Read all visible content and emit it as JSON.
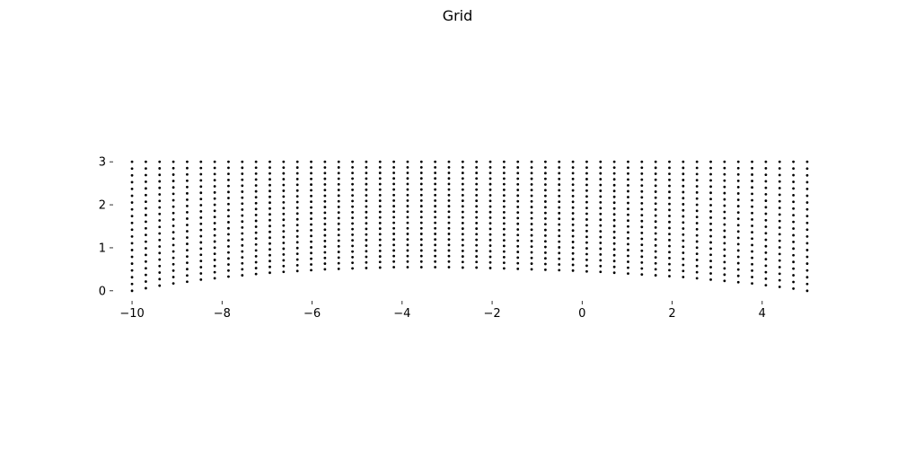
{
  "chart_data": {
    "type": "scatter",
    "title": "Grid",
    "xlabel": "",
    "ylabel": "",
    "xlim": [
      -10.4,
      5.4
    ],
    "ylim": [
      -0.15,
      3.15
    ],
    "x_ticks": [
      -10,
      -8,
      -6,
      -4,
      -2,
      0,
      2,
      4
    ],
    "x_tick_labels": [
      "−10",
      "−8",
      "−6",
      "−4",
      "−2",
      "0",
      "2",
      "4"
    ],
    "y_ticks": [
      0,
      1,
      2,
      3
    ],
    "y_tick_labels": [
      "0",
      "1",
      "2",
      "3"
    ],
    "grid": false,
    "axes_frame": false,
    "marker": "dot",
    "marker_color": "#000000",
    "grid_points": {
      "x_start": -10,
      "x_end": 5,
      "columns": 50,
      "rows": 20,
      "y_top": 3,
      "y_bottom_by_column": [
        0.0,
        0.06,
        0.12,
        0.17,
        0.21,
        0.26,
        0.29,
        0.33,
        0.36,
        0.39,
        0.42,
        0.44,
        0.46,
        0.48,
        0.5,
        0.51,
        0.52,
        0.53,
        0.54,
        0.55,
        0.55,
        0.55,
        0.55,
        0.55,
        0.54,
        0.54,
        0.53,
        0.52,
        0.51,
        0.5,
        0.49,
        0.48,
        0.47,
        0.45,
        0.44,
        0.42,
        0.4,
        0.38,
        0.36,
        0.34,
        0.32,
        0.29,
        0.26,
        0.23,
        0.2,
        0.17,
        0.13,
        0.09,
        0.05,
        0.0
      ]
    }
  }
}
